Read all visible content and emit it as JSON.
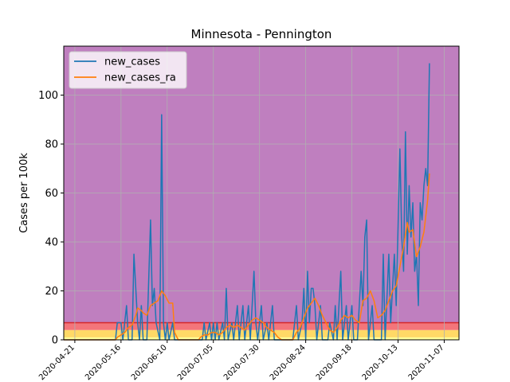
{
  "chart_data": {
    "type": "line",
    "title": "Minnesota - Pennington",
    "xlabel": "",
    "ylabel": "Cases per 100k",
    "xlim": [
      "2020-04-15",
      "2020-11-15"
    ],
    "ylim": [
      0,
      120
    ],
    "x_ticks": [
      "2020-04-21",
      "2020-05-16",
      "2020-06-10",
      "2020-07-05",
      "2020-07-30",
      "2020-08-24",
      "2020-09-18",
      "2020-10-13",
      "2020-11-07"
    ],
    "y_ticks": [
      0,
      20,
      40,
      60,
      80,
      100
    ],
    "grid": true,
    "legend_position": "upper-left",
    "background_bands": [
      {
        "from": 0,
        "to": 1,
        "color": "#ffff99"
      },
      {
        "from": 1,
        "to": 4,
        "color": "#ffd966"
      },
      {
        "from": 4,
        "to": 7,
        "color": "#f4757a"
      },
      {
        "from": 7,
        "to": 120,
        "color": "#bf7fbf"
      }
    ],
    "band_line": {
      "y": 7,
      "color": "#d62728"
    },
    "series": [
      {
        "name": "new_cases",
        "color": "#1f77b4",
        "points": [
          [
            "2020-04-15",
            0
          ],
          [
            "2020-05-13",
            0
          ],
          [
            "2020-05-14",
            7
          ],
          [
            "2020-05-16",
            7
          ],
          [
            "2020-05-17",
            0
          ],
          [
            "2020-05-19",
            14
          ],
          [
            "2020-05-20",
            0
          ],
          [
            "2020-05-22",
            0
          ],
          [
            "2020-05-23",
            35
          ],
          [
            "2020-05-25",
            7
          ],
          [
            "2020-05-26",
            0
          ],
          [
            "2020-05-27",
            14
          ],
          [
            "2020-05-28",
            0
          ],
          [
            "2020-05-30",
            0
          ],
          [
            "2020-06-01",
            49
          ],
          [
            "2020-06-02",
            14
          ],
          [
            "2020-06-03",
            21
          ],
          [
            "2020-06-04",
            7
          ],
          [
            "2020-06-06",
            0
          ],
          [
            "2020-06-07",
            92
          ],
          [
            "2020-06-08",
            7
          ],
          [
            "2020-06-09",
            0
          ],
          [
            "2020-06-10",
            7
          ],
          [
            "2020-06-11",
            0
          ],
          [
            "2020-06-13",
            7
          ],
          [
            "2020-06-14",
            0
          ],
          [
            "2020-06-29",
            0
          ],
          [
            "2020-06-30",
            7
          ],
          [
            "2020-07-01",
            0
          ],
          [
            "2020-07-03",
            7
          ],
          [
            "2020-07-04",
            0
          ],
          [
            "2020-07-05",
            7
          ],
          [
            "2020-07-06",
            0
          ],
          [
            "2020-07-07",
            7
          ],
          [
            "2020-07-08",
            0
          ],
          [
            "2020-07-10",
            7
          ],
          [
            "2020-07-11",
            0
          ],
          [
            "2020-07-12",
            21
          ],
          [
            "2020-07-13",
            0
          ],
          [
            "2020-07-15",
            7
          ],
          [
            "2020-07-16",
            0
          ],
          [
            "2020-07-18",
            14
          ],
          [
            "2020-07-19",
            0
          ],
          [
            "2020-07-20",
            7
          ],
          [
            "2020-07-21",
            14
          ],
          [
            "2020-07-22",
            0
          ],
          [
            "2020-07-24",
            14
          ],
          [
            "2020-07-25",
            0
          ],
          [
            "2020-07-27",
            28
          ],
          [
            "2020-07-28",
            7
          ],
          [
            "2020-07-29",
            0
          ],
          [
            "2020-07-31",
            14
          ],
          [
            "2020-08-01",
            0
          ],
          [
            "2020-08-03",
            7
          ],
          [
            "2020-08-04",
            0
          ],
          [
            "2020-08-06",
            14
          ],
          [
            "2020-08-07",
            0
          ],
          [
            "2020-08-17",
            0
          ],
          [
            "2020-08-19",
            14
          ],
          [
            "2020-08-20",
            0
          ],
          [
            "2020-08-22",
            7
          ],
          [
            "2020-08-23",
            21
          ],
          [
            "2020-08-24",
            0
          ],
          [
            "2020-08-25",
            28
          ],
          [
            "2020-08-26",
            7
          ],
          [
            "2020-08-27",
            21
          ],
          [
            "2020-08-28",
            21
          ],
          [
            "2020-08-29",
            14
          ],
          [
            "2020-08-30",
            0
          ],
          [
            "2020-09-01",
            14
          ],
          [
            "2020-09-02",
            0
          ],
          [
            "2020-09-05",
            0
          ],
          [
            "2020-09-06",
            7
          ],
          [
            "2020-09-08",
            0
          ],
          [
            "2020-09-09",
            14
          ],
          [
            "2020-09-10",
            0
          ],
          [
            "2020-09-12",
            28
          ],
          [
            "2020-09-13",
            0
          ],
          [
            "2020-09-15",
            14
          ],
          [
            "2020-09-16",
            0
          ],
          [
            "2020-09-18",
            14
          ],
          [
            "2020-09-19",
            0
          ],
          [
            "2020-09-21",
            0
          ],
          [
            "2020-09-23",
            28
          ],
          [
            "2020-09-24",
            14
          ],
          [
            "2020-09-25",
            42
          ],
          [
            "2020-09-26",
            49
          ],
          [
            "2020-09-27",
            0
          ],
          [
            "2020-09-29",
            14
          ],
          [
            "2020-09-30",
            0
          ],
          [
            "2020-10-04",
            0
          ],
          [
            "2020-10-05",
            35
          ],
          [
            "2020-10-06",
            0
          ],
          [
            "2020-10-08",
            35
          ],
          [
            "2020-10-09",
            7
          ],
          [
            "2020-10-11",
            35
          ],
          [
            "2020-10-12",
            14
          ],
          [
            "2020-10-14",
            78
          ],
          [
            "2020-10-15",
            42
          ],
          [
            "2020-10-16",
            28
          ],
          [
            "2020-10-17",
            85
          ],
          [
            "2020-10-18",
            35
          ],
          [
            "2020-10-19",
            63
          ],
          [
            "2020-10-20",
            42
          ],
          [
            "2020-10-21",
            56
          ],
          [
            "2020-10-22",
            28
          ],
          [
            "2020-10-23",
            35
          ],
          [
            "2020-10-24",
            14
          ],
          [
            "2020-10-25",
            56
          ],
          [
            "2020-10-26",
            49
          ],
          [
            "2020-10-27",
            63
          ],
          [
            "2020-10-28",
            70
          ],
          [
            "2020-10-29",
            63
          ],
          [
            "2020-10-30",
            113
          ]
        ]
      },
      {
        "name": "new_cases_ra",
        "color": "#ff7f0e",
        "points": [
          [
            "2020-04-15",
            0
          ],
          [
            "2020-05-13",
            0
          ],
          [
            "2020-05-14",
            1
          ],
          [
            "2020-05-16",
            2
          ],
          [
            "2020-05-18",
            3
          ],
          [
            "2020-05-20",
            5
          ],
          [
            "2020-05-22",
            6
          ],
          [
            "2020-05-24",
            10
          ],
          [
            "2020-05-25",
            13
          ],
          [
            "2020-05-27",
            12
          ],
          [
            "2020-05-28",
            11
          ],
          [
            "2020-05-30",
            10
          ],
          [
            "2020-06-01",
            14
          ],
          [
            "2020-06-03",
            15
          ],
          [
            "2020-06-05",
            16
          ],
          [
            "2020-06-07",
            20
          ],
          [
            "2020-06-09",
            18
          ],
          [
            "2020-06-11",
            15
          ],
          [
            "2020-06-13",
            15
          ],
          [
            "2020-06-14",
            3
          ],
          [
            "2020-06-16",
            0
          ],
          [
            "2020-06-27",
            0
          ],
          [
            "2020-06-28",
            1
          ],
          [
            "2020-06-30",
            2
          ],
          [
            "2020-07-02",
            2
          ],
          [
            "2020-07-04",
            3
          ],
          [
            "2020-07-06",
            3
          ],
          [
            "2020-07-08",
            2
          ],
          [
            "2020-07-10",
            3
          ],
          [
            "2020-07-12",
            5
          ],
          [
            "2020-07-14",
            6
          ],
          [
            "2020-07-16",
            5
          ],
          [
            "2020-07-18",
            6
          ],
          [
            "2020-07-20",
            5
          ],
          [
            "2020-07-22",
            4
          ],
          [
            "2020-07-24",
            6
          ],
          [
            "2020-07-26",
            8
          ],
          [
            "2020-07-28",
            9
          ],
          [
            "2020-07-30",
            8
          ],
          [
            "2020-08-01",
            7
          ],
          [
            "2020-08-03",
            5
          ],
          [
            "2020-08-05",
            4
          ],
          [
            "2020-08-07",
            3
          ],
          [
            "2020-08-09",
            1
          ],
          [
            "2020-08-11",
            0
          ],
          [
            "2020-08-17",
            0
          ],
          [
            "2020-08-19",
            3
          ],
          [
            "2020-08-21",
            5
          ],
          [
            "2020-08-23",
            9
          ],
          [
            "2020-08-25",
            13
          ],
          [
            "2020-08-27",
            15
          ],
          [
            "2020-08-29",
            17
          ],
          [
            "2020-08-31",
            14
          ],
          [
            "2020-09-02",
            10
          ],
          [
            "2020-09-04",
            7
          ],
          [
            "2020-09-06",
            4
          ],
          [
            "2020-09-08",
            3
          ],
          [
            "2020-09-10",
            5
          ],
          [
            "2020-09-12",
            8
          ],
          [
            "2020-09-14",
            10
          ],
          [
            "2020-09-16",
            9
          ],
          [
            "2020-09-18",
            10
          ],
          [
            "2020-09-20",
            8
          ],
          [
            "2020-09-22",
            7
          ],
          [
            "2020-09-24",
            16
          ],
          [
            "2020-09-26",
            17
          ],
          [
            "2020-09-28",
            20
          ],
          [
            "2020-09-30",
            16
          ],
          [
            "2020-10-02",
            9
          ],
          [
            "2020-10-04",
            10
          ],
          [
            "2020-10-06",
            12
          ],
          [
            "2020-10-08",
            16
          ],
          [
            "2020-10-10",
            20
          ],
          [
            "2020-10-12",
            22
          ],
          [
            "2020-10-14",
            30
          ],
          [
            "2020-10-16",
            38
          ],
          [
            "2020-10-18",
            48
          ],
          [
            "2020-10-19",
            44
          ],
          [
            "2020-10-21",
            45
          ],
          [
            "2020-10-23",
            34
          ],
          [
            "2020-10-25",
            38
          ],
          [
            "2020-10-27",
            44
          ],
          [
            "2020-10-29",
            57
          ],
          [
            "2020-10-30",
            68
          ]
        ]
      }
    ]
  }
}
